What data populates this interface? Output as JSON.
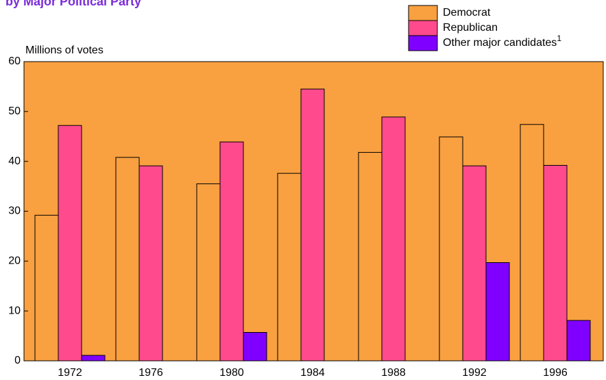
{
  "chart_data": {
    "type": "bar",
    "title": "by Major Political Party",
    "y_label": "Millions of votes",
    "categories": [
      "1972",
      "1976",
      "1980",
      "1984",
      "1988",
      "1992",
      "1996"
    ],
    "series": [
      {
        "name": "Democrat",
        "color": "#f9a040",
        "values": [
          29.2,
          40.8,
          35.5,
          37.6,
          41.8,
          44.9,
          47.4
        ]
      },
      {
        "name": "Republican",
        "color": "#ff4a8d",
        "values": [
          47.2,
          39.1,
          43.9,
          54.5,
          48.9,
          39.1,
          39.2
        ]
      },
      {
        "name": "Other major candidates",
        "footnote": "1",
        "color": "#8000ff",
        "values": [
          1.1,
          null,
          5.7,
          null,
          null,
          19.7,
          8.1
        ]
      }
    ],
    "ylim": [
      0,
      60
    ],
    "yticks": [
      0,
      10,
      20,
      30,
      40,
      50,
      60
    ],
    "background": "#f9a040",
    "legend": "top-right"
  }
}
